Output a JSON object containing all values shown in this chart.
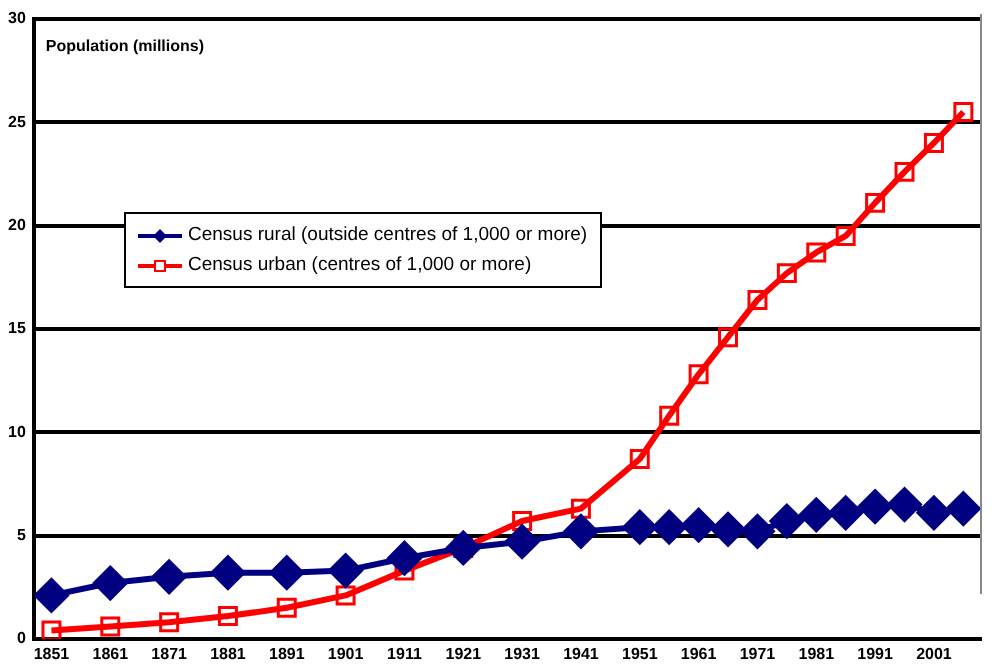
{
  "chart_data": {
    "type": "line",
    "ylabel": "Population (millions)",
    "x": [
      1851,
      1861,
      1871,
      1881,
      1891,
      1901,
      1911,
      1921,
      1931,
      1941,
      1951,
      1956,
      1961,
      1966,
      1971,
      1976,
      1981,
      1986,
      1991,
      1996,
      2001,
      2006
    ],
    "series": [
      {
        "name": "Census rural (outside centres of 1,000 or more)",
        "color": "#000080",
        "marker": "diamond",
        "values": [
          2.1,
          2.7,
          3.0,
          3.2,
          3.2,
          3.3,
          3.9,
          4.4,
          4.7,
          5.2,
          5.4,
          5.4,
          5.5,
          5.3,
          5.2,
          5.7,
          6.0,
          6.1,
          6.4,
          6.5,
          6.1,
          6.3
        ]
      },
      {
        "name": "Census urban (centres of 1,000 or more)",
        "color": "#ff0000",
        "marker": "square",
        "values": [
          0.4,
          0.6,
          0.8,
          1.1,
          1.5,
          2.1,
          3.3,
          4.4,
          5.7,
          6.3,
          8.7,
          10.8,
          12.8,
          14.6,
          16.4,
          17.7,
          18.7,
          19.5,
          21.1,
          22.6,
          24.0,
          25.5
        ]
      }
    ],
    "xlim": [
      1848,
      2009
    ],
    "xticks": [
      1851,
      1861,
      1871,
      1881,
      1891,
      1901,
      1911,
      1921,
      1931,
      1941,
      1951,
      1961,
      1971,
      1981,
      1991,
      2001
    ],
    "ylim": [
      0,
      30
    ],
    "yticks": [
      0,
      5,
      10,
      15,
      20,
      25,
      30
    ],
    "grid": "y",
    "legend": "top left",
    "line_style": "solid"
  }
}
